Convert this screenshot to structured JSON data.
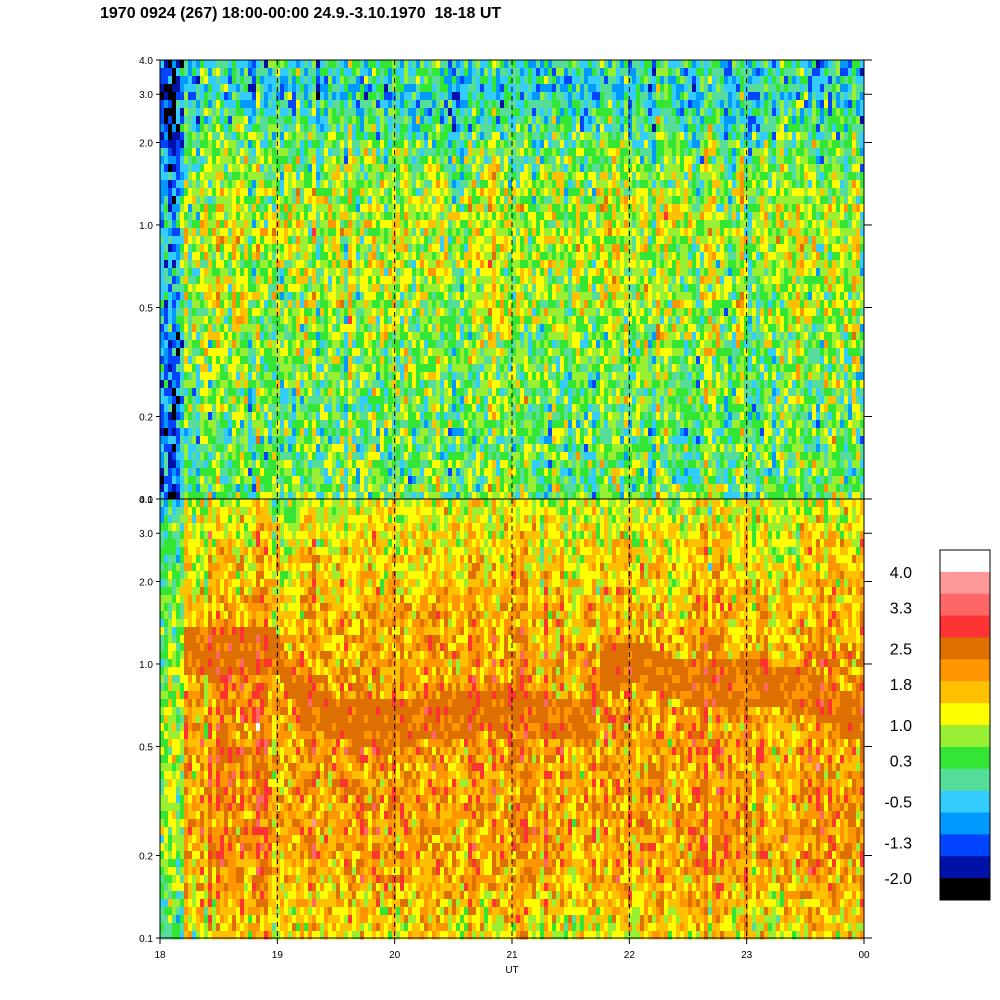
{
  "title": "1970 0924 (267) 18:00-00:00 24.9.-3.10.1970  18-18 UT",
  "chart_data": [
    {
      "type": "heatmap",
      "panel": "upper",
      "y_scale": "log",
      "ylim": [
        0.1,
        4.0
      ],
      "y_ticks": [
        "0.1",
        "0.2",
        "0.5",
        "1.0",
        "2.0",
        "3.0",
        "4.0"
      ],
      "y_tick_values": [
        0.1,
        0.2,
        0.5,
        1.0,
        2.0,
        3.0,
        4.0
      ],
      "xlim": [
        18,
        24
      ],
      "x_tick_values": [
        18,
        19,
        20,
        21,
        22,
        23,
        24
      ],
      "hour_grid": "dashed",
      "profile": [
        {
          "y": 0.1,
          "value": 0.5
        },
        {
          "y": 0.2,
          "value": 0.4
        },
        {
          "y": 0.5,
          "value": 0.8
        },
        {
          "y": 1.0,
          "value": 1.0
        },
        {
          "y": 2.0,
          "value": 0.4
        },
        {
          "y": 3.0,
          "value": -0.2
        },
        {
          "y": 4.0,
          "value": 0.0
        }
      ]
    },
    {
      "type": "heatmap",
      "panel": "lower",
      "y_scale": "log",
      "ylim": [
        0.1,
        4.0
      ],
      "y_ticks": [
        "0.1",
        "0.2",
        "0.5",
        "1.0",
        "2.0",
        "3.0",
        "4.0"
      ],
      "y_tick_values": [
        0.1,
        0.2,
        0.5,
        1.0,
        2.0,
        3.0,
        4.0
      ],
      "xlim": [
        18,
        24
      ],
      "x_ticks": [
        "18",
        "19",
        "20",
        "21",
        "22",
        "23",
        "00"
      ],
      "x_tick_values": [
        18,
        19,
        20,
        21,
        22,
        23,
        24
      ],
      "xlabel": "UT",
      "hour_grid": "dashed",
      "profile": [
        {
          "y": 0.1,
          "value": 1.3
        },
        {
          "y": 0.2,
          "value": 1.9
        },
        {
          "y": 0.5,
          "value": 1.9
        },
        {
          "y": 1.0,
          "value": 1.9
        },
        {
          "y": 2.0,
          "value": 1.5
        },
        {
          "y": 3.0,
          "value": 1.3
        },
        {
          "y": 4.0,
          "value": 1.0
        }
      ],
      "dark_band": [
        {
          "x": 18.2,
          "y": 1.1
        },
        {
          "x": 19.0,
          "y": 1.1
        },
        {
          "x": 19.2,
          "y": 0.7
        },
        {
          "x": 19.6,
          "y": 0.62
        },
        {
          "x": 20.0,
          "y": 0.6
        },
        {
          "x": 20.5,
          "y": 0.65
        },
        {
          "x": 21.0,
          "y": 0.7
        },
        {
          "x": 21.2,
          "y": 0.65
        },
        {
          "x": 21.7,
          "y": 0.6
        },
        {
          "x": 21.75,
          "y": 0.95
        },
        {
          "x": 22.1,
          "y": 1.0
        },
        {
          "x": 22.5,
          "y": 0.85
        },
        {
          "x": 23.0,
          "y": 0.85
        },
        {
          "x": 23.5,
          "y": 0.8
        },
        {
          "x": 24.0,
          "y": 0.6
        }
      ]
    }
  ],
  "colorbar": {
    "labels": [
      "4.0",
      "3.3",
      "2.5",
      "1.8",
      "1.0",
      "0.3",
      "-0.5",
      "-1.3",
      "-2.0"
    ],
    "label_values": [
      4.0,
      3.3,
      2.5,
      1.8,
      1.0,
      0.3,
      -0.5,
      -1.3,
      -2.0
    ],
    "range": [
      -2.0,
      4.0
    ],
    "colors_top_to_bottom": [
      "#ffffff",
      "#ff9999",
      "#ff6666",
      "#ff3333",
      "#dd7000",
      "#ff9600",
      "#ffc000",
      "#ffff00",
      "#99f033",
      "#33e633",
      "#55dd99",
      "#33ccff",
      "#0099ff",
      "#0044ff",
      "#0011aa",
      "#000000"
    ]
  }
}
